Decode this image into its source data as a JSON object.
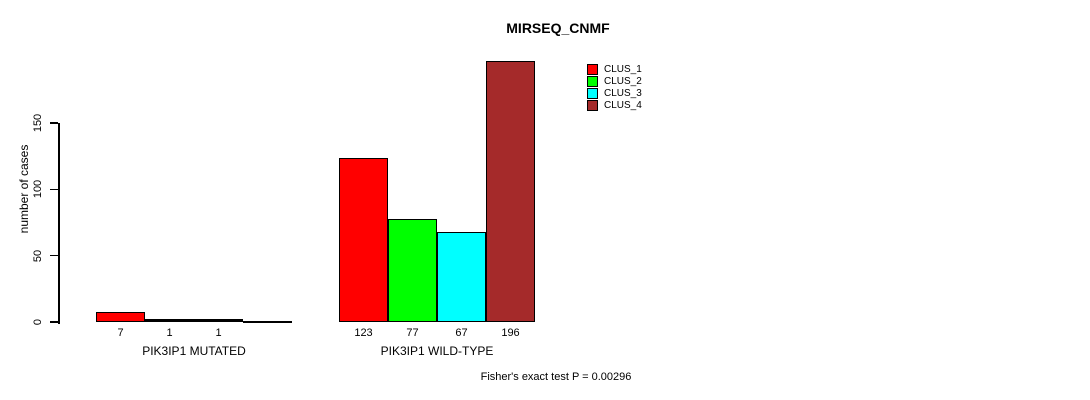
{
  "chart_data": {
    "type": "bar",
    "title": "MIRSEQ_CNMF",
    "ylabel": "number of cases",
    "ylim": [
      0,
      150
    ],
    "yticks": [
      0,
      50,
      100,
      150
    ],
    "grid": false,
    "legend_position": "top-right-inside",
    "categories": [
      "PIK3IP1 MUTATED",
      "PIK3IP1 WILD-TYPE"
    ],
    "series": [
      {
        "name": "CLUS_1",
        "color": "#FF0000",
        "values": [
          7,
          123
        ]
      },
      {
        "name": "CLUS_2",
        "color": "#00FF00",
        "values": [
          1,
          77
        ]
      },
      {
        "name": "CLUS_3",
        "color": "#00FFFF",
        "values": [
          1,
          67
        ]
      },
      {
        "name": "CLUS_4",
        "color": "#A52A2A",
        "values": [
          0,
          196
        ]
      }
    ],
    "bar_value_labels": [
      [
        "7",
        "1",
        "1",
        ""
      ],
      [
        "123",
        "77",
        "67",
        "196"
      ]
    ],
    "footnote": "Fisher's exact test P = 0.00296"
  }
}
